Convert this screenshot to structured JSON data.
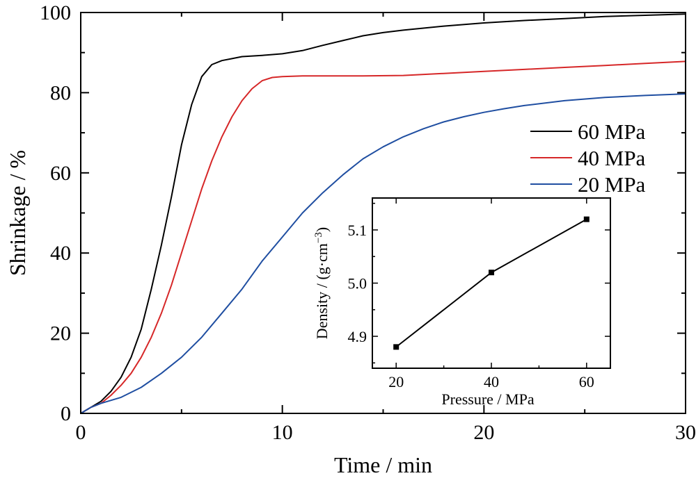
{
  "chart_data": [
    {
      "type": "line",
      "xlabel": "Time / min",
      "ylabel": "Shrinkage / %",
      "xlim": [
        0,
        30
      ],
      "ylim": [
        0,
        100
      ],
      "x_ticks": [
        "0",
        "10",
        "20",
        "30"
      ],
      "y_ticks": [
        "0",
        "20",
        "40",
        "60",
        "80",
        "100"
      ],
      "grid": false,
      "legend_position": "right",
      "series": [
        {
          "name": "60 MPa",
          "color": "#000000",
          "x": [
            0,
            0.5,
            1,
            1.5,
            2,
            2.5,
            3,
            3.5,
            4,
            4.5,
            5,
            5.5,
            6,
            6.5,
            7,
            7.5,
            8,
            9,
            10,
            11,
            12,
            13,
            14,
            15,
            16,
            18,
            20,
            22,
            24,
            26,
            28,
            30
          ],
          "y": [
            0,
            1.5,
            3,
            5.5,
            9,
            14,
            21,
            31,
            42,
            54,
            67,
            77,
            84,
            87,
            88,
            88.5,
            89,
            89.3,
            89.7,
            90.5,
            91.8,
            93,
            94.2,
            95,
            95.6,
            96.6,
            97.4,
            98,
            98.5,
            99,
            99.3,
            99.6
          ]
        },
        {
          "name": "40 MPa",
          "color": "#d62728",
          "x": [
            0,
            0.5,
            1,
            1.5,
            2,
            2.5,
            3,
            3.5,
            4,
            4.5,
            5,
            5.5,
            6,
            6.5,
            7,
            7.5,
            8,
            8.5,
            9,
            9.5,
            10,
            11,
            12,
            14,
            16,
            18,
            20,
            22,
            24,
            26,
            28,
            30
          ],
          "y": [
            0,
            1.5,
            2.5,
            4.5,
            7,
            10,
            14,
            19,
            25,
            32,
            40,
            48,
            56,
            63,
            69,
            74,
            78,
            81,
            83,
            83.8,
            84,
            84.2,
            84.2,
            84.2,
            84.3,
            84.8,
            85.3,
            85.8,
            86.3,
            86.8,
            87.3,
            87.8
          ]
        },
        {
          "name": "20 MPa",
          "color": "#1f4ea1",
          "x": [
            0,
            0.5,
            1,
            2,
            3,
            4,
            5,
            6,
            7,
            8,
            9,
            10,
            11,
            12,
            13,
            14,
            15,
            16,
            17,
            18,
            19,
            20,
            21,
            22,
            24,
            26,
            28,
            30
          ],
          "y": [
            0,
            1.5,
            2.5,
            4,
            6.5,
            10,
            14,
            19,
            25,
            31,
            38,
            44,
            50,
            55,
            59.5,
            63.5,
            66.5,
            69,
            71,
            72.7,
            74,
            75.1,
            76,
            76.8,
            78,
            78.8,
            79.3,
            79.7
          ]
        }
      ]
    },
    {
      "type": "line",
      "inset": true,
      "xlabel": "Pressure / MPa",
      "ylabel": "Density / (g·cm",
      "ylabel_superscript": "−3",
      "ylabel_close": ")",
      "xlim": [
        15,
        65
      ],
      "ylim": [
        4.84,
        5.16
      ],
      "x_ticks": [
        "20",
        "40",
        "60"
      ],
      "y_ticks": [
        "4.9",
        "5.0",
        "5.1"
      ],
      "series": [
        {
          "color": "#000000",
          "marker": "square",
          "x": [
            20,
            40,
            60
          ],
          "y": [
            4.88,
            5.02,
            5.12
          ]
        }
      ]
    }
  ]
}
